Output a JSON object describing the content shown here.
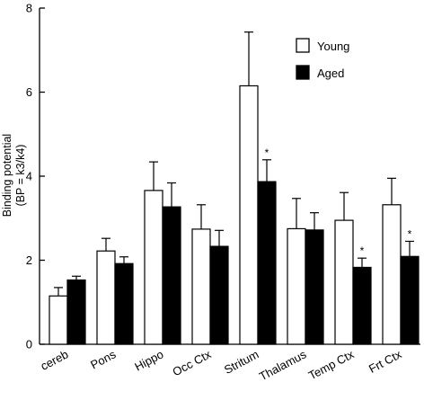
{
  "chart_data": {
    "type": "bar",
    "ylabel_lines": [
      "Binding potential",
      "(BP = k3/k4)"
    ],
    "xlabel": "",
    "ylim": [
      0,
      8
    ],
    "yticks": [
      0,
      2,
      4,
      6,
      8
    ],
    "categories": [
      "cereb",
      "Pons",
      "Hippo",
      "Occ Ctx",
      "Stritum",
      "Thalamus",
      "Temp Ctx",
      "Frt Ctx"
    ],
    "series": [
      {
        "name": "Young",
        "color": "#ffffff",
        "values": [
          1.15,
          2.22,
          3.66,
          2.74,
          6.15,
          2.75,
          2.95,
          3.32
        ],
        "errors": [
          0.2,
          0.3,
          0.68,
          0.58,
          1.28,
          0.72,
          0.66,
          0.63
        ]
      },
      {
        "name": "Aged",
        "color": "#000000",
        "values": [
          1.53,
          1.92,
          3.27,
          2.33,
          3.87,
          2.72,
          1.83,
          2.09
        ],
        "errors": [
          0.09,
          0.16,
          0.57,
          0.38,
          0.52,
          0.41,
          0.22,
          0.36
        ]
      }
    ],
    "annotations": [
      {
        "series": "Aged",
        "category": "Stritum",
        "text": "*"
      },
      {
        "series": "Aged",
        "category": "Temp Ctx",
        "text": "*"
      },
      {
        "series": "Aged",
        "category": "Frt Ctx",
        "text": "*"
      }
    ],
    "legend_position": "top-right",
    "grid": false
  }
}
